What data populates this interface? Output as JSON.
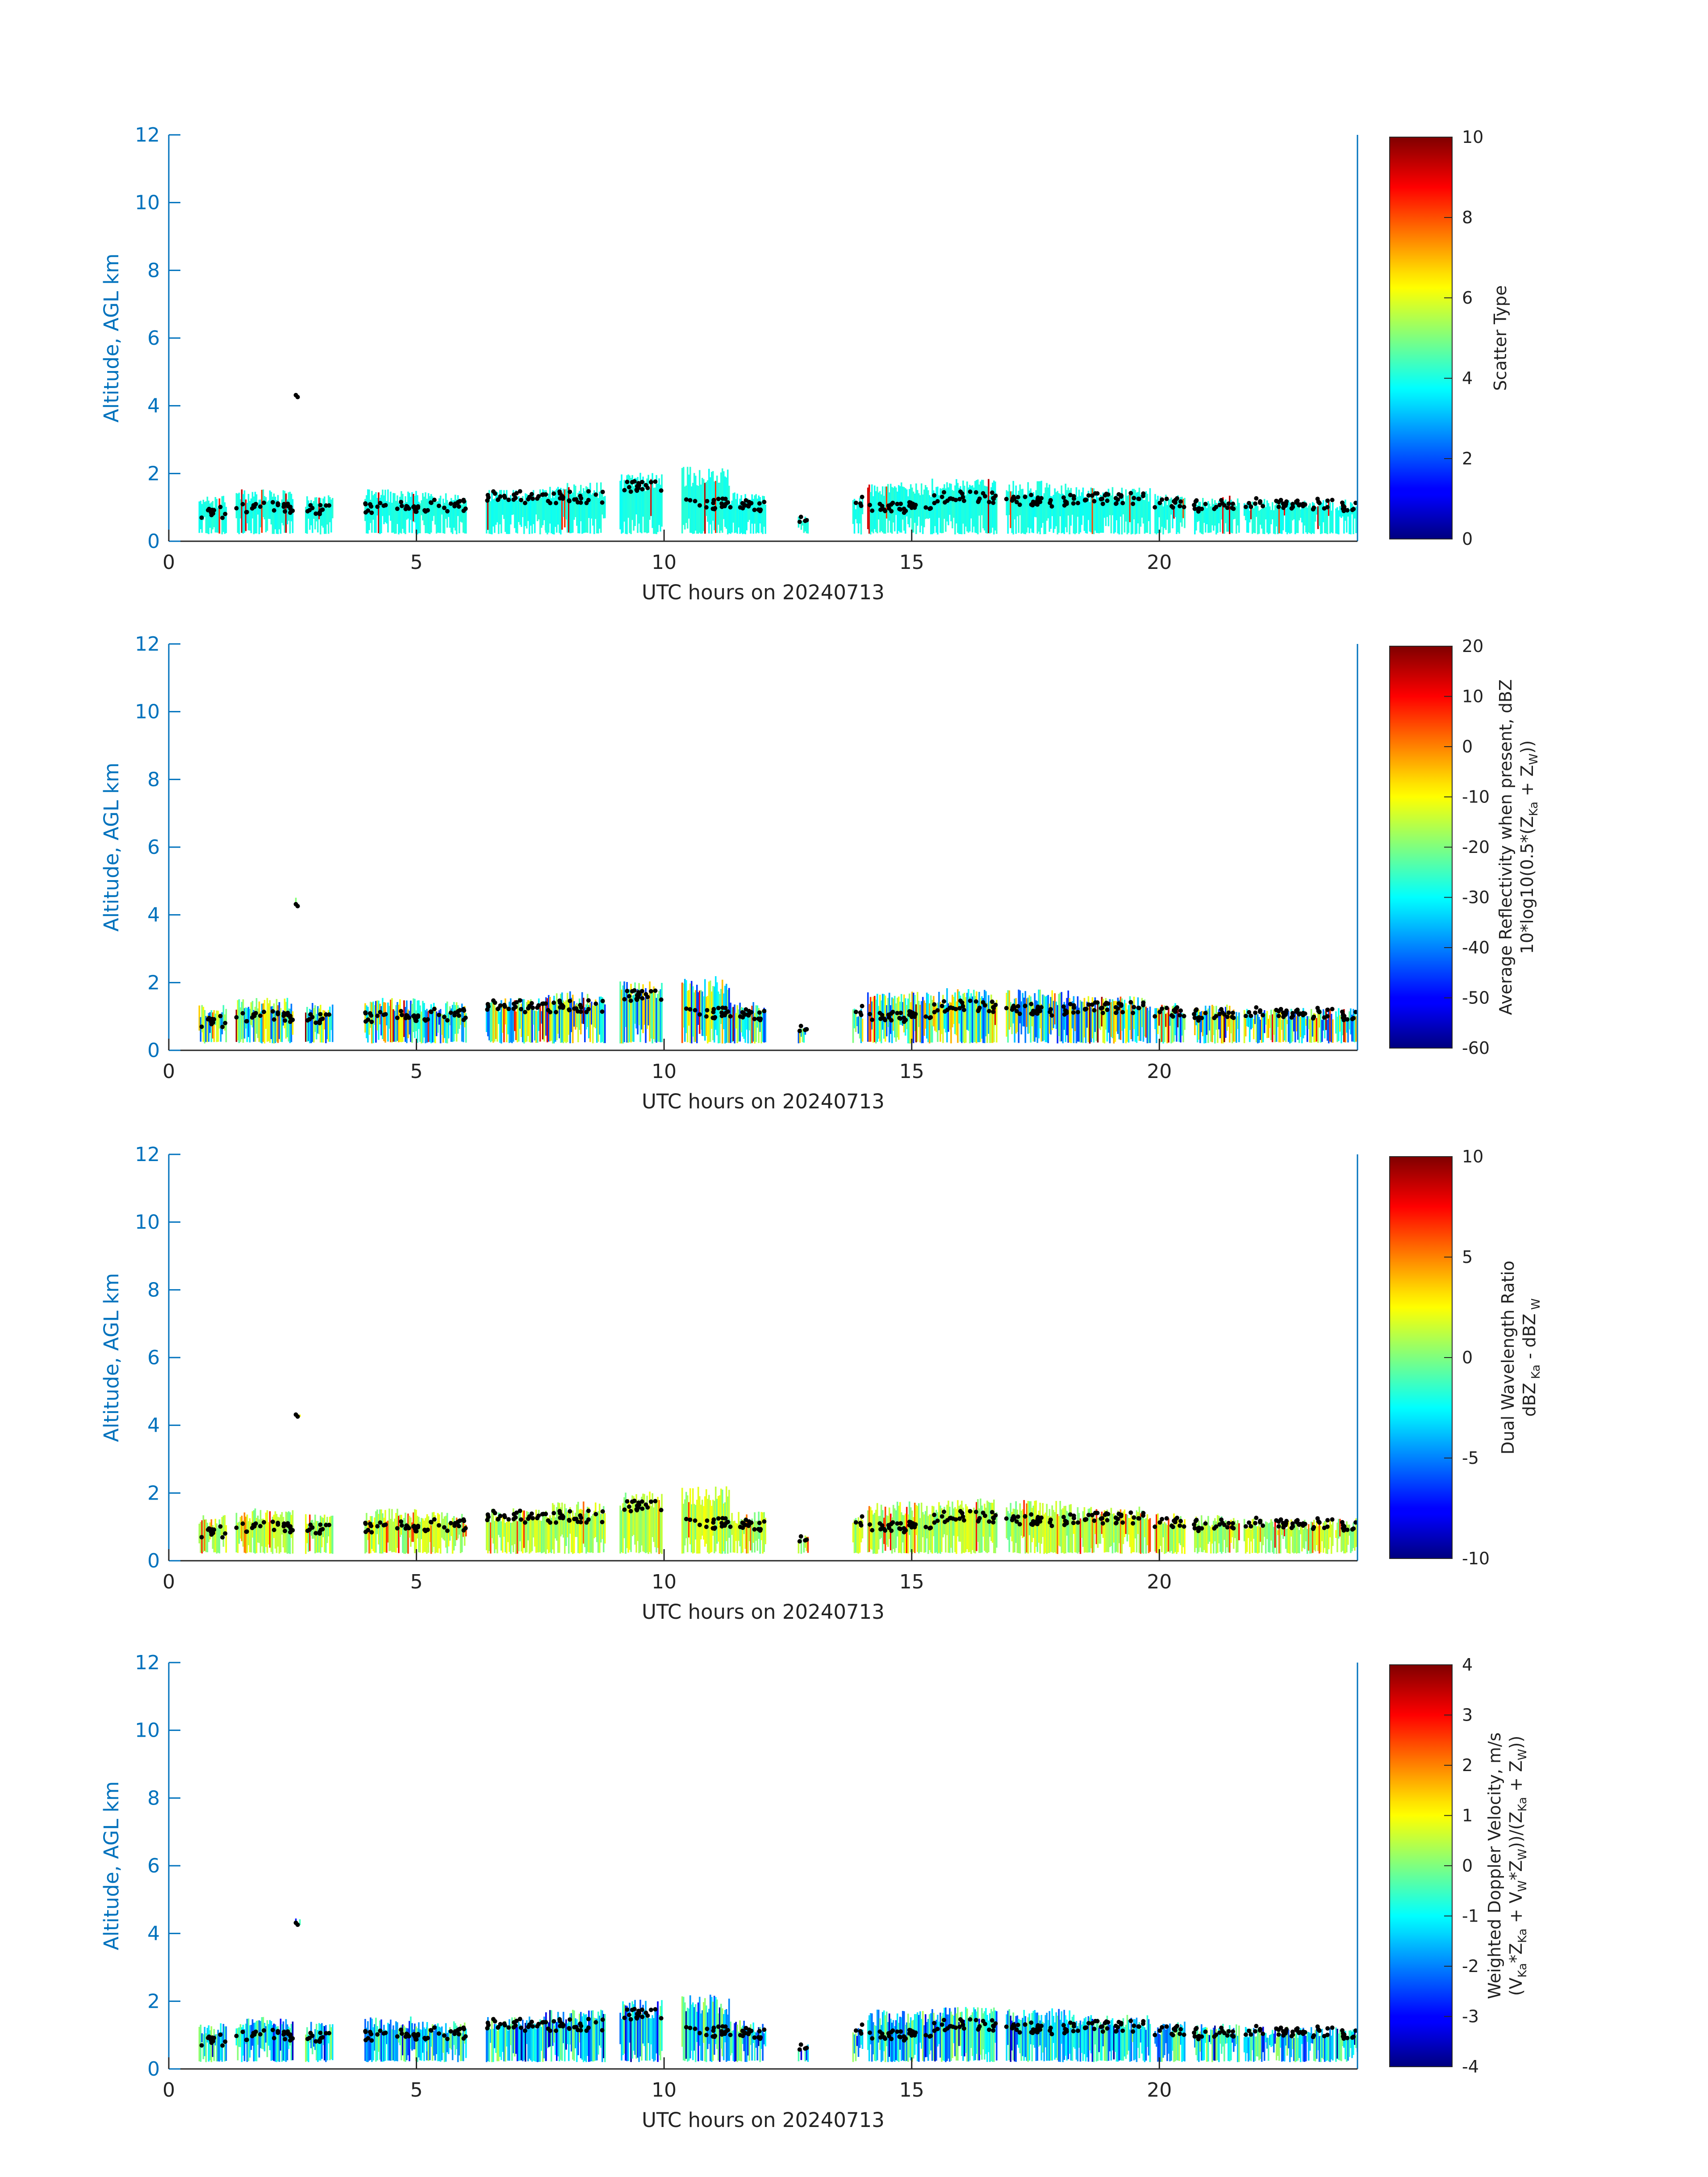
{
  "colors": {
    "axis": "#0072BD",
    "cloud_base_marker": "#000000",
    "colormap": "jet"
  },
  "chart_data": [
    {
      "type": "heatmap",
      "xlabel": "UTC hours on 20240713",
      "ylabel": "Altitude, AGL km",
      "xlim": [
        0,
        24
      ],
      "ylim": [
        0,
        12
      ],
      "xticks": [
        "0",
        "5",
        "10",
        "15",
        "20"
      ],
      "yticks": [
        "0",
        "2",
        "4",
        "6",
        "8",
        "10",
        "12"
      ],
      "colorbar": {
        "label": [
          "Scatter Type"
        ],
        "min": 0,
        "max": 10,
        "ticks": [
          "0",
          "2",
          "4",
          "6",
          "8",
          "10"
        ]
      },
      "dominant_value": 4
    },
    {
      "type": "heatmap",
      "xlabel": "UTC hours on 20240713",
      "ylabel": "Altitude, AGL km",
      "xlim": [
        0,
        24
      ],
      "ylim": [
        0,
        12
      ],
      "xticks": [
        "0",
        "5",
        "10",
        "15",
        "20"
      ],
      "yticks": [
        "0",
        "2",
        "4",
        "6",
        "8",
        "10",
        "12"
      ],
      "colorbar": {
        "label": [
          "Average Reflectivity when present, dBZ",
          "10*log10(0.5*(Z_Ka + Z_W))"
        ],
        "min": -60,
        "max": 20,
        "ticks": [
          "-60",
          "-50",
          "-40",
          "-30",
          "-20",
          "-10",
          "0",
          "10",
          "20"
        ]
      },
      "dominant_value": -25
    },
    {
      "type": "heatmap",
      "xlabel": "UTC hours on 20240713",
      "ylabel": "Altitude, AGL km",
      "xlim": [
        0,
        24
      ],
      "ylim": [
        0,
        12
      ],
      "xticks": [
        "0",
        "5",
        "10",
        "15",
        "20"
      ],
      "yticks": [
        "0",
        "2",
        "4",
        "6",
        "8",
        "10",
        "12"
      ],
      "colorbar": {
        "label": [
          "Dual Wavelength Ratio",
          "dBZ_Ka - dBZ_W"
        ],
        "min": -10,
        "max": 10,
        "ticks": [
          "-10",
          "-5",
          "0",
          "5",
          "10"
        ]
      },
      "dominant_value": 1
    },
    {
      "type": "heatmap",
      "xlabel": "UTC hours on 20240713",
      "ylabel": "Altitude, AGL km",
      "xlim": [
        0,
        24
      ],
      "ylim": [
        0,
        12
      ],
      "xticks": [
        "0",
        "5",
        "10",
        "15",
        "20"
      ],
      "yticks": [
        "0",
        "2",
        "4",
        "6",
        "8",
        "10",
        "12"
      ],
      "colorbar": {
        "label": [
          "Weighted Doppler Velocity, m/s",
          "(V_Ka*Z_Ka + V_W*Z_W))/(Z_Ka + Z_W))"
        ],
        "min": -4,
        "max": 4,
        "ticks": [
          "-4",
          "-3",
          "-2",
          "-1",
          "0",
          "1",
          "2",
          "3",
          "4"
        ]
      },
      "dominant_value": -1
    }
  ],
  "cloud_segments": [
    {
      "x": [
        0.6,
        1.15
      ],
      "top": 1.35,
      "base_km": 0.85
    },
    {
      "x": [
        1.35,
        2.5
      ],
      "top": 1.55,
      "base_km": 1.0
    },
    {
      "x": [
        2.55,
        2.65
      ],
      "top": 4.55,
      "bottom": 4.25,
      "base_km": 4.4
    },
    {
      "x": [
        2.75,
        3.3
      ],
      "top": 1.4,
      "base_km": 0.9
    },
    {
      "x": [
        3.95,
        5.2
      ],
      "top": 1.55,
      "base_km": 1.0
    },
    {
      "x": [
        5.2,
        6.0
      ],
      "top": 1.45,
      "base_km": 1.05
    },
    {
      "x": [
        6.4,
        7.6
      ],
      "top": 1.55,
      "base_km": 1.3
    },
    {
      "x": [
        7.6,
        8.8
      ],
      "top": 1.75,
      "base_km": 1.3
    },
    {
      "x": [
        9.1,
        9.95
      ],
      "top": 2.05,
      "base_km": 1.6
    },
    {
      "x": [
        10.35,
        11.3
      ],
      "top": 2.2,
      "base_km": 1.1
    },
    {
      "x": [
        11.3,
        12.05
      ],
      "top": 1.45,
      "base_km": 1.05
    },
    {
      "x": [
        12.7,
        12.9
      ],
      "top": 0.75,
      "base_km": 0.55
    },
    {
      "x": [
        13.8,
        14.0
      ],
      "top": 1.3,
      "base_km": 1.15
    },
    {
      "x": [
        14.1,
        15.4
      ],
      "top": 1.75,
      "base_km": 1.0
    },
    {
      "x": [
        15.4,
        16.7
      ],
      "top": 1.85,
      "base_km": 1.3
    },
    {
      "x": [
        16.9,
        18.2
      ],
      "top": 1.8,
      "base_km": 1.2
    },
    {
      "x": [
        18.2,
        19.8
      ],
      "top": 1.6,
      "base_km": 1.25
    },
    {
      "x": [
        19.9,
        20.5
      ],
      "top": 1.4,
      "base_km": 1.15
    },
    {
      "x": [
        20.7,
        21.6
      ],
      "top": 1.35,
      "base_km": 1.05
    },
    {
      "x": [
        21.7,
        23.5
      ],
      "top": 1.25,
      "base_km": 1.1
    },
    {
      "x": [
        23.55,
        24.0
      ],
      "top": 1.25,
      "base_km": 1.05
    }
  ]
}
